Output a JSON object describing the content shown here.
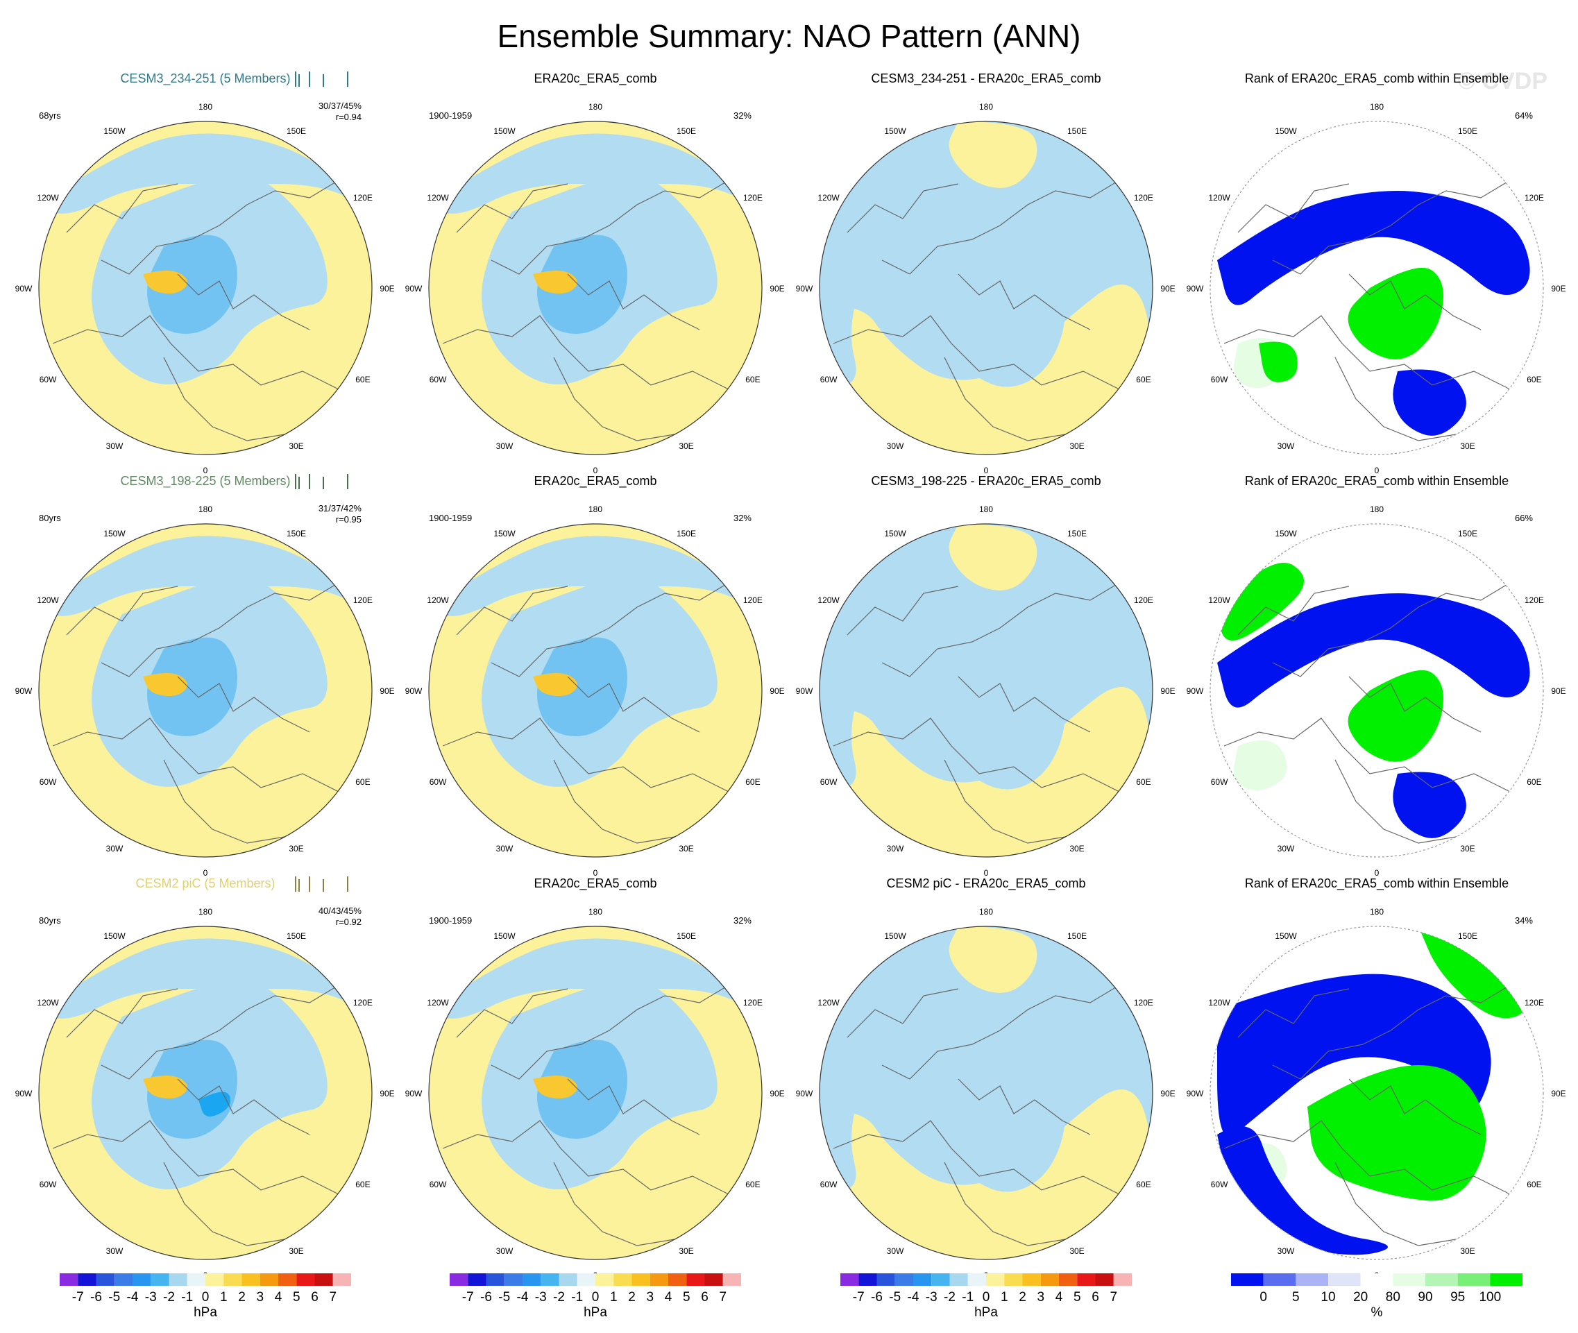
{
  "title": "Ensemble Summary: NAO Pattern (ANN)",
  "watermark": "© CVDP",
  "lon_labels": [
    "180",
    "150E",
    "120E",
    "90E",
    "60E",
    "30E",
    "0",
    "30W",
    "60W",
    "90W",
    "120W",
    "150W"
  ],
  "colors": {
    "yellow": "#fbf29b",
    "lightblue": "#b2dcf2",
    "midblue": "#73c3f2",
    "blue2": "#5ab0f0",
    "deepblue": "#1aa6f0",
    "orange": "#f9c830",
    "rank_blue": "#0012f0",
    "rank_green": "#00f000",
    "rank_pale": "#e4fde3",
    "coast": "#666666"
  },
  "rows": [
    {
      "model": {
        "title": "CESM3_234-251 (5 Members)",
        "title_color": "#2e7a8a",
        "years": "68yrs",
        "pcts": "30/37/45%",
        "r": "r=0.94",
        "tick_color": "#2e7a8a"
      },
      "obs": {
        "title": "ERA20c_ERA5_comb",
        "period": "1900-1959",
        "pct": "32%"
      },
      "diff": {
        "title": "CESM3_234-251 - ERA20c_ERA5_comb"
      },
      "rank": {
        "title": "Rank of ERA20c_ERA5_comb within Ensemble",
        "pct": "64%"
      }
    },
    {
      "model": {
        "title": "CESM3_198-225 (5 Members)",
        "title_color": "#5f8a62",
        "years": "80yrs",
        "pcts": "31/37/42%",
        "r": "r=0.95",
        "tick_color": "#4a6e4d"
      },
      "obs": {
        "title": "ERA20c_ERA5_comb",
        "period": "1900-1959",
        "pct": "32%"
      },
      "diff": {
        "title": "CESM3_198-225 - ERA20c_ERA5_comb"
      },
      "rank": {
        "title": "Rank of ERA20c_ERA5_comb within Ensemble",
        "pct": "66%"
      }
    },
    {
      "model": {
        "title": "CESM2 piC (5 Members)",
        "title_color": "#e0d070",
        "years": "80yrs",
        "pcts": "40/43/45%",
        "r": "r=0.92",
        "tick_color": "#8a8040"
      },
      "obs": {
        "title": "ERA20c_ERA5_comb",
        "period": "1900-1959",
        "pct": "32%"
      },
      "diff": {
        "title": "CESM2 piC - ERA20c_ERA5_comb"
      },
      "rank": {
        "title": "Rank of ERA20c_ERA5_comb within Ensemble",
        "pct": "34%"
      }
    }
  ],
  "colorbar_slp": {
    "labels": [
      "-7",
      "-6",
      "-5",
      "-4",
      "-3",
      "-2",
      "-1",
      "0",
      "1",
      "2",
      "3",
      "4",
      "5",
      "6",
      "7"
    ],
    "colors": [
      "#8a2be2",
      "#1414d8",
      "#2855dc",
      "#3c7ce8",
      "#2896f0",
      "#46b4f0",
      "#a8d8f0",
      "#e8f4f8",
      "#fbf29b",
      "#fadc50",
      "#f9c020",
      "#f59a10",
      "#f06010",
      "#e81818",
      "#c81010",
      "#f8b4b4"
    ],
    "unit": "hPa"
  },
  "colorbar_rank": {
    "labels": [
      "0",
      "5",
      "10",
      "20",
      "80",
      "90",
      "95",
      "100"
    ],
    "colors": [
      "#0012f0",
      "#5a6cf0",
      "#aab4f4",
      "#e0e4f8",
      "#ffffff",
      "#e4fde3",
      "#b4f4b4",
      "#78f078",
      "#00f000"
    ],
    "unit": "%"
  }
}
